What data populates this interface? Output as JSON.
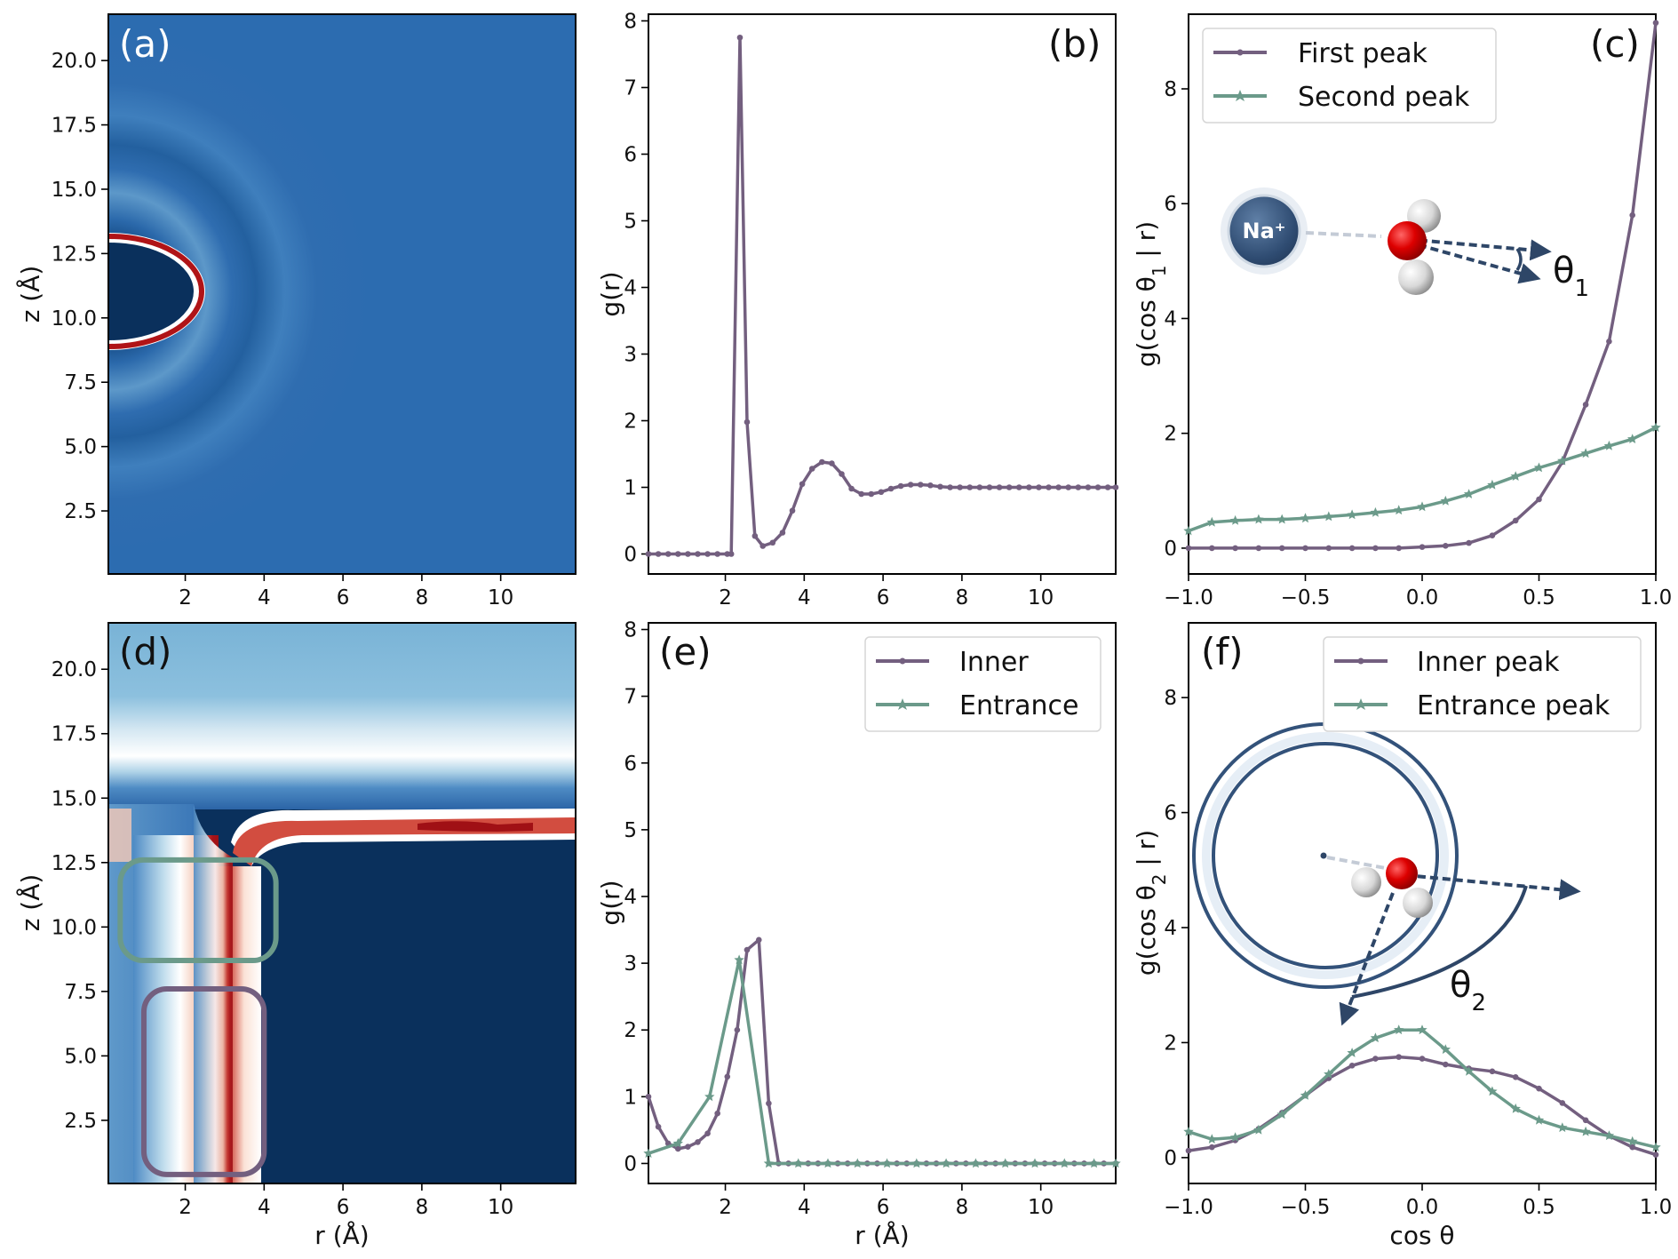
{
  "figure": {
    "colors": {
      "purple": "#735f7f",
      "green": "#6b9a8a",
      "deep_blue": "#0a305c",
      "bulk_blue": "#2c6cb0",
      "light_blue": "#7ab0d4",
      "red": "#b01417",
      "navy": "#2e4667"
    }
  },
  "chart_data": [
    {
      "panel": "a",
      "label": "(a)",
      "type": "heatmap",
      "xlabel": "",
      "ylabel": "z (Å)",
      "xlim": [
        0.05,
        11.9
      ],
      "ylim": [
        0.05,
        21.8
      ],
      "xticks": [
        2,
        4,
        6,
        8,
        10
      ],
      "yticks": [
        2.5,
        5.0,
        7.5,
        10.0,
        12.5,
        15.0,
        17.5,
        20.0
      ],
      "description_values": {
        "cavity_center_z": 11.0,
        "cavity_radius_r": 2.5,
        "first_shell_radius": 3.1,
        "second_shell_radius": 5.3
      }
    },
    {
      "panel": "b",
      "label": "(b)",
      "type": "line",
      "xlabel": "",
      "ylabel": "g(r)",
      "xlim": [
        0.05,
        11.9
      ],
      "ylim": [
        -0.3,
        8.1
      ],
      "xticks": [
        2,
        4,
        6,
        8,
        10
      ],
      "yticks": [
        0,
        1,
        2,
        3,
        4,
        5,
        6,
        7,
        8
      ],
      "series": [
        {
          "name": "g(r)",
          "color": "#735f7f",
          "marker": "dot",
          "x": [
            0.05,
            0.3,
            0.55,
            0.8,
            1.05,
            1.3,
            1.55,
            1.8,
            2.05,
            2.15,
            2.37,
            2.55,
            2.75,
            2.95,
            3.2,
            3.45,
            3.7,
            3.95,
            4.2,
            4.45,
            4.7,
            4.95,
            5.2,
            5.45,
            5.7,
            5.95,
            6.2,
            6.45,
            6.7,
            6.95,
            7.2,
            7.45,
            7.7,
            7.95,
            8.2,
            8.45,
            8.7,
            8.95,
            9.2,
            9.45,
            9.7,
            9.95,
            10.2,
            10.45,
            10.7,
            10.95,
            11.2,
            11.45,
            11.7,
            11.9
          ],
          "y": [
            0,
            0,
            0,
            0,
            0,
            0,
            0,
            0,
            0,
            0,
            7.75,
            1.98,
            0.27,
            0.12,
            0.17,
            0.32,
            0.65,
            1.05,
            1.28,
            1.38,
            1.36,
            1.2,
            0.98,
            0.9,
            0.9,
            0.93,
            0.98,
            1.02,
            1.04,
            1.04,
            1.03,
            1.01,
            1.0,
            1.0,
            1.0,
            1.0,
            1.0,
            1.0,
            1.0,
            1.0,
            1.0,
            1.0,
            1.0,
            1.0,
            1.0,
            1.0,
            1.0,
            1.0,
            1.0,
            1.0
          ]
        }
      ]
    },
    {
      "panel": "c",
      "label": "(c)",
      "type": "line",
      "xlabel": "",
      "ylabel": "g(cos θ1 | r)",
      "ylabel_main": "g(cos θ",
      "ylabel_sub": "1",
      "ylabel_tail": " | r)",
      "xlim": [
        -1.0,
        1.0
      ],
      "ylim": [
        -0.45,
        9.3
      ],
      "xticks": [
        -1.0,
        -0.5,
        0.0,
        0.5,
        1.0
      ],
      "xtick_labels": [
        "−1.0",
        "−0.5",
        "0.0",
        "0.5",
        "1.0"
      ],
      "yticks": [
        0,
        2,
        4,
        6,
        8
      ],
      "legend": {
        "position": "top-left",
        "entries": [
          "First peak",
          "Second peak"
        ]
      },
      "inset": {
        "ion_label": "Na⁺",
        "angle_label": "θ",
        "angle_sub": "1"
      },
      "series": [
        {
          "name": "First peak",
          "color": "#735f7f",
          "marker": "dot",
          "x": [
            -1.0,
            -0.9,
            -0.8,
            -0.7,
            -0.6,
            -0.5,
            -0.4,
            -0.3,
            -0.2,
            -0.1,
            0.0,
            0.1,
            0.2,
            0.3,
            0.4,
            0.5,
            0.6,
            0.7,
            0.8,
            0.9,
            1.0
          ],
          "y": [
            0,
            0,
            0,
            0,
            0,
            0,
            0,
            0,
            0,
            0,
            0.02,
            0.04,
            0.09,
            0.22,
            0.48,
            0.85,
            1.5,
            2.5,
            3.6,
            5.8,
            9.15
          ]
        },
        {
          "name": "Second peak",
          "color": "#6b9a8a",
          "marker": "star",
          "x": [
            -1.0,
            -0.9,
            -0.8,
            -0.7,
            -0.6,
            -0.5,
            -0.4,
            -0.3,
            -0.2,
            -0.1,
            0.0,
            0.1,
            0.2,
            0.3,
            0.4,
            0.5,
            0.6,
            0.7,
            0.8,
            0.9,
            1.0
          ],
          "y": [
            0.3,
            0.45,
            0.48,
            0.5,
            0.5,
            0.52,
            0.55,
            0.58,
            0.62,
            0.66,
            0.72,
            0.82,
            0.94,
            1.1,
            1.25,
            1.4,
            1.52,
            1.65,
            1.78,
            1.9,
            2.1
          ]
        }
      ]
    },
    {
      "panel": "d",
      "label": "(d)",
      "type": "heatmap",
      "xlabel": "r (Å)",
      "ylabel": "z (Å)",
      "xlim": [
        0.05,
        11.9
      ],
      "ylim": [
        0.05,
        21.8
      ],
      "xticks": [
        2,
        4,
        6,
        8,
        10
      ],
      "yticks": [
        2.5,
        5.0,
        7.5,
        10.0,
        12.5,
        15.0,
        17.5,
        20.0
      ],
      "highlight_boxes": [
        {
          "name": "entrance",
          "color": "#6b9a8a",
          "r_range": [
            0.35,
            4.3
          ],
          "z_range": [
            8.7,
            12.6
          ]
        },
        {
          "name": "inner",
          "color": "#735f7f",
          "r_range": [
            0.95,
            4.0
          ],
          "z_range": [
            0.4,
            7.6
          ]
        }
      ]
    },
    {
      "panel": "e",
      "label": "(e)",
      "type": "line",
      "xlabel": "r (Å)",
      "ylabel": "g(r)",
      "xlim": [
        0.05,
        11.9
      ],
      "ylim": [
        -0.3,
        8.1
      ],
      "xticks": [
        2,
        4,
        6,
        8,
        10
      ],
      "yticks": [
        0,
        1,
        2,
        3,
        4,
        5,
        6,
        7,
        8
      ],
      "legend": {
        "position": "top-right",
        "entries": [
          "Inner",
          "Entrance"
        ]
      },
      "series": [
        {
          "name": "Inner",
          "color": "#735f7f",
          "marker": "dot",
          "x": [
            0.05,
            0.3,
            0.55,
            0.8,
            1.05,
            1.3,
            1.55,
            1.8,
            2.05,
            2.3,
            2.55,
            2.85,
            3.1,
            3.35,
            3.6,
            3.85,
            4.1,
            4.35,
            4.6,
            4.85,
            5.1,
            5.35,
            5.6,
            5.85,
            6.1,
            6.35,
            6.6,
            6.85,
            7.1,
            7.35,
            7.6,
            7.85,
            8.1,
            8.35,
            8.6,
            8.85,
            9.1,
            9.35,
            9.6,
            9.85,
            10.1,
            10.35,
            10.6,
            10.85,
            11.1,
            11.35,
            11.6,
            11.9
          ],
          "y": [
            1.0,
            0.55,
            0.3,
            0.22,
            0.25,
            0.32,
            0.45,
            0.75,
            1.3,
            2.0,
            3.2,
            3.35,
            0.9,
            0,
            0,
            0,
            0,
            0,
            0,
            0,
            0,
            0,
            0,
            0,
            0,
            0,
            0,
            0,
            0,
            0,
            0,
            0,
            0,
            0,
            0,
            0,
            0,
            0,
            0,
            0,
            0,
            0,
            0,
            0,
            0,
            0,
            0,
            0
          ]
        },
        {
          "name": "Entrance",
          "color": "#6b9a8a",
          "marker": "star",
          "x": [
            0.05,
            0.8,
            1.6,
            2.35,
            3.1,
            3.85,
            4.6,
            5.35,
            6.1,
            6.85,
            7.6,
            8.35,
            9.1,
            9.85,
            10.6,
            11.35,
            11.9
          ],
          "y": [
            0.15,
            0.3,
            1.0,
            3.05,
            0,
            0,
            0,
            0,
            0,
            0,
            0,
            0,
            0,
            0,
            0,
            0,
            0
          ]
        }
      ]
    },
    {
      "panel": "f",
      "label": "(f)",
      "type": "line",
      "xlabel": "cos θ",
      "ylabel": "g(cos θ2 | r)",
      "ylabel_main": "g(cos θ",
      "ylabel_sub": "2",
      "ylabel_tail": " | r)",
      "xlim": [
        -1.0,
        1.0
      ],
      "ylim": [
        -0.45,
        9.3
      ],
      "xticks": [
        -1.0,
        -0.5,
        0.0,
        0.5,
        1.0
      ],
      "xtick_labels": [
        "−1.0",
        "−0.5",
        "0.0",
        "0.5",
        "1.0"
      ],
      "yticks": [
        0,
        2,
        4,
        6,
        8
      ],
      "legend": {
        "position": "top-right",
        "entries": [
          "Inner peak",
          "Entrance peak"
        ]
      },
      "inset": {
        "angle_label": "θ",
        "angle_sub": "2"
      },
      "series": [
        {
          "name": "Inner peak",
          "color": "#735f7f",
          "marker": "dot",
          "x": [
            -1.0,
            -0.9,
            -0.8,
            -0.7,
            -0.6,
            -0.5,
            -0.4,
            -0.3,
            -0.2,
            -0.1,
            0.0,
            0.1,
            0.2,
            0.3,
            0.4,
            0.5,
            0.6,
            0.7,
            0.8,
            0.9,
            1.0
          ],
          "y": [
            0.12,
            0.18,
            0.3,
            0.5,
            0.78,
            1.08,
            1.38,
            1.6,
            1.72,
            1.75,
            1.72,
            1.62,
            1.55,
            1.5,
            1.4,
            1.2,
            0.95,
            0.65,
            0.38,
            0.18,
            0.05
          ]
        },
        {
          "name": "Entrance peak",
          "color": "#6b9a8a",
          "marker": "star",
          "x": [
            -1.0,
            -0.9,
            -0.8,
            -0.7,
            -0.6,
            -0.5,
            -0.4,
            -0.3,
            -0.2,
            -0.1,
            0.0,
            0.1,
            0.2,
            0.3,
            0.4,
            0.5,
            0.6,
            0.7,
            0.8,
            0.9,
            1.0
          ],
          "y": [
            0.45,
            0.32,
            0.35,
            0.48,
            0.75,
            1.08,
            1.45,
            1.82,
            2.08,
            2.22,
            2.22,
            1.88,
            1.5,
            1.15,
            0.85,
            0.65,
            0.52,
            0.45,
            0.38,
            0.28,
            0.18
          ]
        }
      ]
    }
  ]
}
